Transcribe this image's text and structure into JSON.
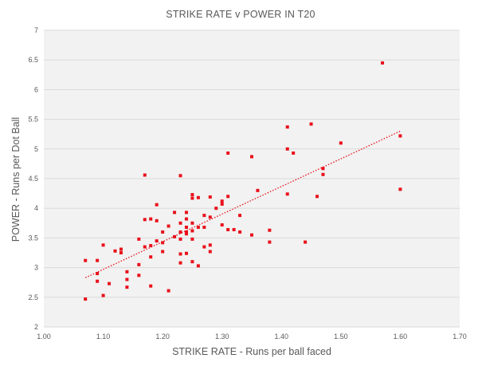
{
  "chart_data": {
    "type": "scatter",
    "title": "STRIKE RATE v POWER IN T20",
    "xlabel": "STRIKE RATE - Runs per ball faced",
    "ylabel": "POWER - Runs per Dot Ball",
    "xlim": [
      1.0,
      1.7
    ],
    "ylim": [
      2,
      7
    ],
    "x_ticks": [
      "1.00",
      "1.10",
      "1.20",
      "1.30",
      "1.40",
      "1.50",
      "1.60",
      "1.70"
    ],
    "y_ticks": [
      "2",
      "2.5",
      "3",
      "3.5",
      "4",
      "4.5",
      "5",
      "5.5",
      "6",
      "6.5",
      "7"
    ],
    "x_tick_values": [
      1.0,
      1.1,
      1.2,
      1.3,
      1.4,
      1.5,
      1.6,
      1.7
    ],
    "y_tick_values": [
      2,
      2.5,
      3,
      3.5,
      4,
      4.5,
      5,
      5.5,
      6,
      6.5,
      7
    ],
    "grid": "horizontal",
    "legend": "none",
    "point_color": "#e8101a",
    "background_color": "#f2f2f2",
    "trendline": {
      "type": "linear",
      "style": "dotted",
      "x": [
        1.07,
        1.6
      ],
      "y": [
        2.83,
        5.3
      ]
    },
    "series": [
      {
        "points": [
          [
            1.07,
            3.12
          ],
          [
            1.07,
            2.47
          ],
          [
            1.09,
            3.12
          ],
          [
            1.09,
            2.9
          ],
          [
            1.09,
            2.77
          ],
          [
            1.1,
            3.38
          ],
          [
            1.1,
            2.53
          ],
          [
            1.11,
            2.73
          ],
          [
            1.12,
            3.28
          ],
          [
            1.13,
            3.31
          ],
          [
            1.13,
            3.25
          ],
          [
            1.14,
            2.93
          ],
          [
            1.14,
            2.8
          ],
          [
            1.14,
            2.67
          ],
          [
            1.16,
            3.48
          ],
          [
            1.16,
            3.05
          ],
          [
            1.16,
            2.87
          ],
          [
            1.17,
            4.56
          ],
          [
            1.17,
            3.81
          ],
          [
            1.17,
            3.35
          ],
          [
            1.18,
            3.82
          ],
          [
            1.18,
            3.37
          ],
          [
            1.18,
            3.18
          ],
          [
            1.18,
            2.69
          ],
          [
            1.19,
            4.06
          ],
          [
            1.19,
            3.79
          ],
          [
            1.19,
            3.45
          ],
          [
            1.2,
            3.6
          ],
          [
            1.2,
            3.42
          ],
          [
            1.2,
            3.27
          ],
          [
            1.21,
            3.7
          ],
          [
            1.21,
            2.61
          ],
          [
            1.22,
            3.93
          ],
          [
            1.22,
            3.52
          ],
          [
            1.23,
            4.55
          ],
          [
            1.23,
            3.75
          ],
          [
            1.23,
            3.6
          ],
          [
            1.23,
            3.48
          ],
          [
            1.23,
            3.23
          ],
          [
            1.23,
            3.08
          ],
          [
            1.24,
            3.93
          ],
          [
            1.24,
            3.82
          ],
          [
            1.24,
            3.68
          ],
          [
            1.24,
            3.6
          ],
          [
            1.24,
            3.57
          ],
          [
            1.24,
            3.24
          ],
          [
            1.25,
            4.23
          ],
          [
            1.25,
            4.17
          ],
          [
            1.25,
            3.75
          ],
          [
            1.25,
            3.62
          ],
          [
            1.25,
            3.48
          ],
          [
            1.25,
            3.1
          ],
          [
            1.26,
            4.18
          ],
          [
            1.26,
            3.68
          ],
          [
            1.26,
            3.03
          ],
          [
            1.27,
            3.88
          ],
          [
            1.27,
            3.68
          ],
          [
            1.27,
            3.35
          ],
          [
            1.28,
            4.19
          ],
          [
            1.28,
            3.85
          ],
          [
            1.28,
            3.38
          ],
          [
            1.28,
            3.27
          ],
          [
            1.29,
            4.0
          ],
          [
            1.3,
            4.12
          ],
          [
            1.3,
            4.07
          ],
          [
            1.3,
            3.72
          ],
          [
            1.31,
            4.93
          ],
          [
            1.31,
            4.2
          ],
          [
            1.31,
            3.64
          ],
          [
            1.32,
            3.64
          ],
          [
            1.33,
            3.88
          ],
          [
            1.33,
            3.6
          ],
          [
            1.35,
            4.87
          ],
          [
            1.35,
            3.55
          ],
          [
            1.36,
            4.3
          ],
          [
            1.38,
            3.63
          ],
          [
            1.38,
            3.43
          ],
          [
            1.41,
            5.37
          ],
          [
            1.41,
            5.0
          ],
          [
            1.41,
            4.24
          ],
          [
            1.42,
            4.93
          ],
          [
            1.44,
            3.43
          ],
          [
            1.45,
            5.42
          ],
          [
            1.46,
            4.2
          ],
          [
            1.47,
            4.67
          ],
          [
            1.47,
            4.57
          ],
          [
            1.5,
            5.1
          ],
          [
            1.57,
            6.45
          ],
          [
            1.6,
            5.22
          ],
          [
            1.6,
            4.32
          ]
        ]
      }
    ]
  }
}
